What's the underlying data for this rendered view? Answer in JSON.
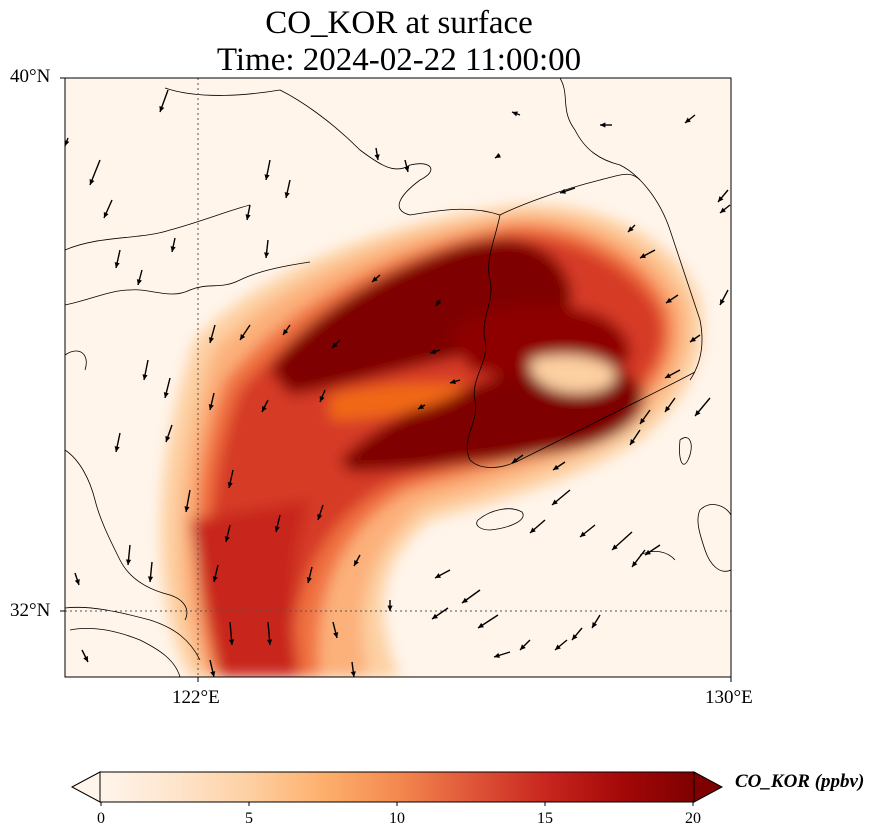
{
  "title": {
    "line1": "CO_KOR at surface",
    "line2": "Time: 2024-02-22 11:00:00"
  },
  "map": {
    "lon_range": [
      120,
      130
    ],
    "lat_range": [
      31,
      40
    ],
    "gridlines": {
      "lon": 122,
      "lat": 32
    },
    "lat_labels": [
      "40°N",
      "32°N"
    ],
    "lon_labels": [
      "122°E",
      "130°E"
    ],
    "background_color": "#fff5eb"
  },
  "colorbar": {
    "label": "CO_KOR (ppbv)",
    "ticks": [
      "0",
      "5",
      "10",
      "15",
      "20"
    ],
    "range": [
      0,
      20
    ],
    "colormap": [
      "#fff5eb",
      "#fee6ce",
      "#fdd0a2",
      "#fdae6b",
      "#fd8d3c",
      "#f16913",
      "#d94801",
      "#a60000",
      "#7f0000"
    ]
  }
}
